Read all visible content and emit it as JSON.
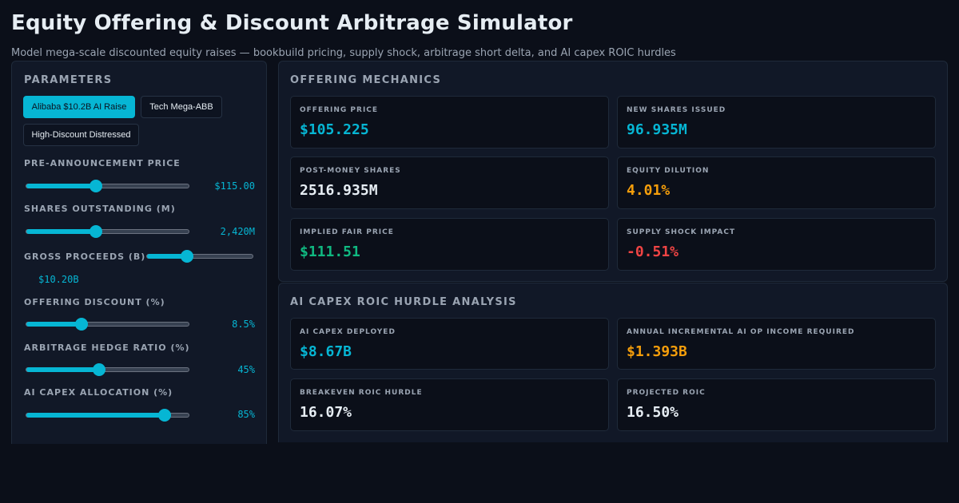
{
  "header": {
    "title": "Equity Offering & Discount Arbitrage Simulator",
    "subtitle": "Model mega-scale discounted equity raises — bookbuild pricing, supply shock, arbitrage short delta, and AI capex ROIC hurdles"
  },
  "parameters": {
    "title": "PARAMETERS",
    "presets": [
      "Alibaba $10.2B AI Raise",
      "Tech Mega-ABB",
      "High-Discount Distressed"
    ],
    "active_preset": "Alibaba $10.2B AI Raise",
    "items": [
      {
        "label": "PRE-ANNOUNCEMENT PRICE",
        "value": "$115.00",
        "level": 0.43
      },
      {
        "label": "SHARES OUTSTANDING (M)",
        "value": "2,420M",
        "level": 0.43
      },
      {
        "label": "GROSS PROCEEDS (B)",
        "value": "$10.20B",
        "level": 0.38
      },
      {
        "label": "OFFERING DISCOUNT (%)",
        "value": "8.5%",
        "level": 0.34
      },
      {
        "label": "ARBITRAGE HEDGE RATIO (%)",
        "value": "45%",
        "level": 0.45
      },
      {
        "label": "AI CAPEX ALLOCATION (%)",
        "value": "85%",
        "level": 0.85
      }
    ]
  },
  "mechanics": {
    "title": "OFFERING MECHANICS",
    "cards": [
      {
        "label": "OFFERING PRICE",
        "value": "$105.225",
        "color": "#06b6d4"
      },
      {
        "label": "NEW SHARES ISSUED",
        "value": "96.935M",
        "color": "#06b6d4"
      },
      {
        "label": "POST-MONEY SHARES",
        "value": "2516.935M",
        "color": "#e6edf3"
      },
      {
        "label": "EQUITY DILUTION",
        "value": "4.01%",
        "color": "#f59e0b"
      },
      {
        "label": "IMPLIED FAIR PRICE",
        "value": "$111.51",
        "color": "#10b981"
      },
      {
        "label": "SUPPLY SHOCK IMPACT",
        "value": "-0.51%",
        "color": "#ef4444"
      }
    ]
  },
  "roic": {
    "title": "AI CAPEX ROIC HURDLE ANALYSIS",
    "cards": [
      {
        "label": "AI CAPEX DEPLOYED",
        "value": "$8.67B",
        "color": "#06b6d4"
      },
      {
        "label": "ANNUAL INCREMENTAL AI OP INCOME REQUIRED",
        "value": "$1.393B",
        "color": "#f59e0b"
      },
      {
        "label": "BREAKEVEN ROIC HURDLE",
        "value": "16.07%",
        "color": "#e6edf3"
      },
      {
        "label": "PROJECTED ROIC",
        "value": "16.50%",
        "color": "#e6edf3"
      }
    ]
  },
  "colors": {
    "accent": "#06b6d4",
    "background": "#0b0f19",
    "panel": "#111827",
    "warning": "#f59e0b",
    "positive": "#10b981",
    "negative": "#ef4444"
  }
}
